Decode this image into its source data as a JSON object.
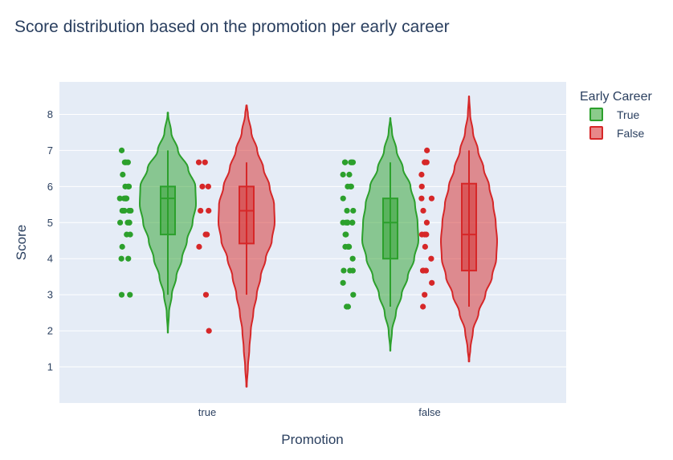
{
  "chart_data": {
    "type": "violin",
    "title": "Score distribution based on the promotion per early career",
    "xlabel": "Promotion",
    "ylabel": "Score",
    "categories": [
      "true",
      "false"
    ],
    "ylim": [
      0,
      8.9
    ],
    "yticks": [
      1,
      2,
      3,
      4,
      5,
      6,
      7,
      8
    ],
    "grid": true,
    "legend": {
      "title": "Early Career",
      "placement": "top-right",
      "entries": [
        "True",
        "False"
      ]
    },
    "colors": {
      "True": "#2ca02c",
      "False": "#d62728",
      "plot_bg": "#e5ecf6",
      "grid": "#ffffff",
      "text": "#2a3f5f"
    },
    "series": [
      {
        "name": "True",
        "groups": [
          {
            "category": "true",
            "kde_range": [
              1.95,
              8.05
            ],
            "density": [
              [
                2.0,
                0.005
              ],
              [
                2.5,
                0.04
              ],
              [
                3.0,
                0.14
              ],
              [
                3.5,
                0.3
              ],
              [
                4.0,
                0.5
              ],
              [
                4.5,
                0.68
              ],
              [
                5.0,
                0.88
              ],
              [
                5.5,
                1.0
              ],
              [
                6.0,
                0.98
              ],
              [
                6.5,
                0.72
              ],
              [
                7.0,
                0.36
              ],
              [
                7.5,
                0.12
              ],
              [
                8.0,
                0.01
              ]
            ],
            "box": {
              "min": 3.0,
              "q1": 4.67,
              "median": 5.67,
              "q3": 6.0,
              "max": 7.0
            },
            "points": [
              7.0,
              6.67,
              6.67,
              6.67,
              6.33,
              6.0,
              6.0,
              6.0,
              5.67,
              5.67,
              5.67,
              5.67,
              5.67,
              5.67,
              5.33,
              5.33,
              5.33,
              5.33,
              5.33,
              5.0,
              5.0,
              5.0,
              5.0,
              4.67,
              4.67,
              4.33,
              4.0,
              4.0,
              3.0,
              3.0
            ]
          },
          {
            "category": "false",
            "kde_range": [
              1.45,
              7.9
            ],
            "density": [
              [
                1.5,
                0.005
              ],
              [
                2.0,
                0.06
              ],
              [
                2.5,
                0.2
              ],
              [
                3.0,
                0.4
              ],
              [
                3.5,
                0.62
              ],
              [
                4.0,
                0.85
              ],
              [
                4.5,
                1.0
              ],
              [
                5.0,
                0.97
              ],
              [
                5.5,
                0.88
              ],
              [
                6.0,
                0.72
              ],
              [
                6.5,
                0.45
              ],
              [
                7.0,
                0.22
              ],
              [
                7.5,
                0.06
              ],
              [
                7.9,
                0.005
              ]
            ],
            "box": {
              "min": 2.67,
              "q1": 4.0,
              "median": 5.0,
              "q3": 5.67,
              "max": 6.67
            },
            "points": [
              6.67,
              6.67,
              6.67,
              6.67,
              6.67,
              6.33,
              6.33,
              6.0,
              6.0,
              6.0,
              5.67,
              5.33,
              5.33,
              5.0,
              5.0,
              5.0,
              5.0,
              5.0,
              5.0,
              4.67,
              4.67,
              4.33,
              4.33,
              4.33,
              4.33,
              4.0,
              3.67,
              3.67,
              3.67,
              3.33,
              3.0,
              2.67,
              2.67
            ]
          }
        ]
      },
      {
        "name": "False",
        "groups": [
          {
            "category": "true",
            "kde_range": [
              0.45,
              8.25
            ],
            "density": [
              [
                0.5,
                0.01
              ],
              [
                1.0,
                0.05
              ],
              [
                1.5,
                0.1
              ],
              [
                2.0,
                0.15
              ],
              [
                2.5,
                0.24
              ],
              [
                3.0,
                0.36
              ],
              [
                3.5,
                0.5
              ],
              [
                4.0,
                0.68
              ],
              [
                4.5,
                0.9
              ],
              [
                5.0,
                1.0
              ],
              [
                5.5,
                0.98
              ],
              [
                6.0,
                0.82
              ],
              [
                6.5,
                0.6
              ],
              [
                7.0,
                0.38
              ],
              [
                7.5,
                0.17
              ],
              [
                8.0,
                0.05
              ],
              [
                8.25,
                0.01
              ]
            ],
            "box": {
              "min": 3.0,
              "q1": 4.42,
              "median": 5.33,
              "q3": 6.0,
              "max": 6.67
            },
            "points": [
              6.67,
              6.67,
              6.0,
              6.0,
              5.33,
              5.33,
              4.67,
              4.67,
              4.33,
              3.0,
              2.0
            ]
          },
          {
            "category": "false",
            "kde_range": [
              1.15,
              8.5
            ],
            "density": [
              [
                1.2,
                0.01
              ],
              [
                1.5,
                0.05
              ],
              [
                2.0,
                0.14
              ],
              [
                2.5,
                0.34
              ],
              [
                3.0,
                0.58
              ],
              [
                3.5,
                0.82
              ],
              [
                4.0,
                0.97
              ],
              [
                4.5,
                1.0
              ],
              [
                5.0,
                0.95
              ],
              [
                5.5,
                0.86
              ],
              [
                6.0,
                0.72
              ],
              [
                6.5,
                0.52
              ],
              [
                7.0,
                0.32
              ],
              [
                7.5,
                0.14
              ],
              [
                8.0,
                0.04
              ],
              [
                8.5,
                0.005
              ]
            ],
            "box": {
              "min": 2.67,
              "q1": 3.67,
              "median": 4.67,
              "q3": 6.08,
              "max": 7.0
            },
            "points": [
              7.0,
              6.67,
              6.67,
              6.67,
              6.33,
              6.0,
              5.67,
              5.67,
              5.33,
              5.0,
              4.67,
              4.67,
              4.67,
              4.33,
              4.0,
              3.67,
              3.67,
              3.67,
              3.33,
              3.0,
              2.67
            ]
          }
        ]
      }
    ]
  }
}
